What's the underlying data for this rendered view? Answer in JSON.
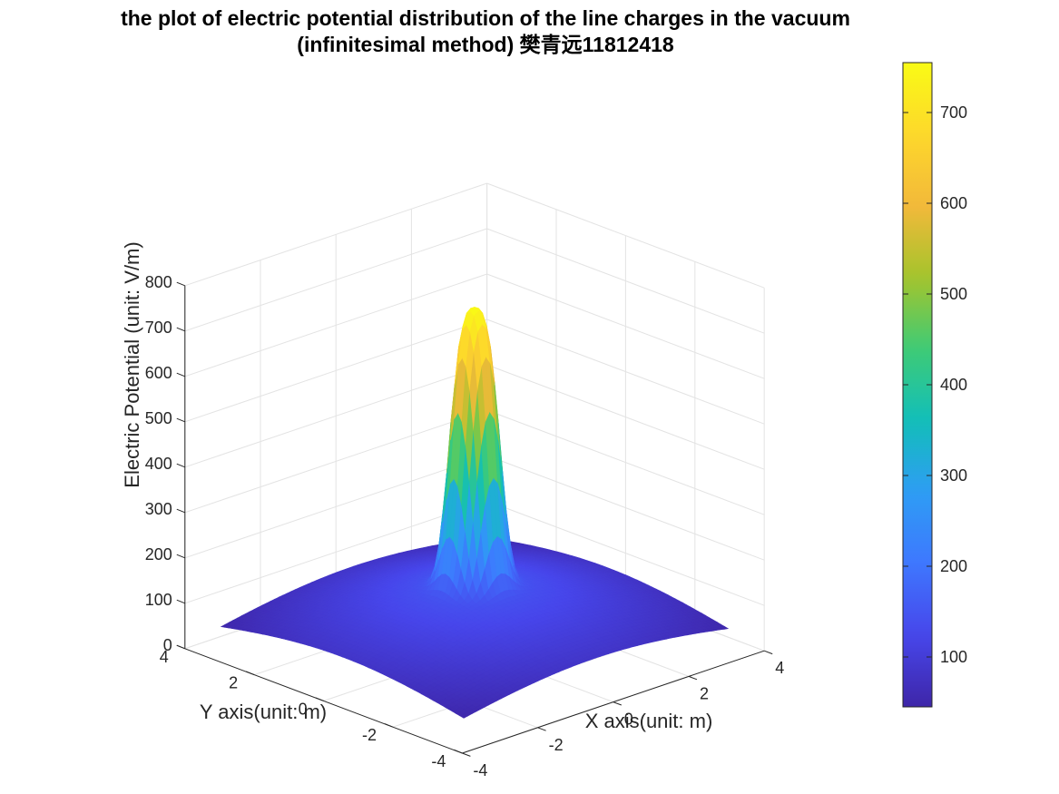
{
  "chart_data": {
    "type": "surface",
    "title_lines": [
      "the plot of electric potential distribution of the line charges in the vacuum",
      "(infinitesimal method) 樊青远11812418"
    ],
    "xlabel": "X axis(unit: m)",
    "ylabel": "Y axis(unit: m)",
    "zlabel": "Electric Potential (unit: V/m)",
    "xlim": [
      -4,
      4
    ],
    "ylim": [
      -4,
      4
    ],
    "zlim": [
      0,
      800
    ],
    "x_ticks": [
      -4,
      -2,
      0,
      2,
      4
    ],
    "y_ticks": [
      -4,
      -2,
      0,
      2,
      4
    ],
    "z_ticks": [
      0,
      100,
      200,
      300,
      400,
      500,
      600,
      700,
      800
    ],
    "surface": {
      "x_range": [
        -3.5,
        3.5
      ],
      "y_range": [
        -3.5,
        3.5
      ],
      "peak_value": 755,
      "peak_location": [
        0,
        0
      ],
      "edge_value": 50
    },
    "grid": true,
    "colorbar": {
      "colormap": "parula",
      "range": [
        45,
        755
      ],
      "ticks": [
        100,
        200,
        300,
        400,
        500,
        600,
        700
      ],
      "position": "right"
    },
    "colors": [
      "#3e26a8",
      "#4746eb",
      "#3e77fe",
      "#2e9df4",
      "#12beb9",
      "#3ecb76",
      "#a4c42c",
      "#f3b93a",
      "#fdd82b",
      "#f9fb15"
    ]
  }
}
